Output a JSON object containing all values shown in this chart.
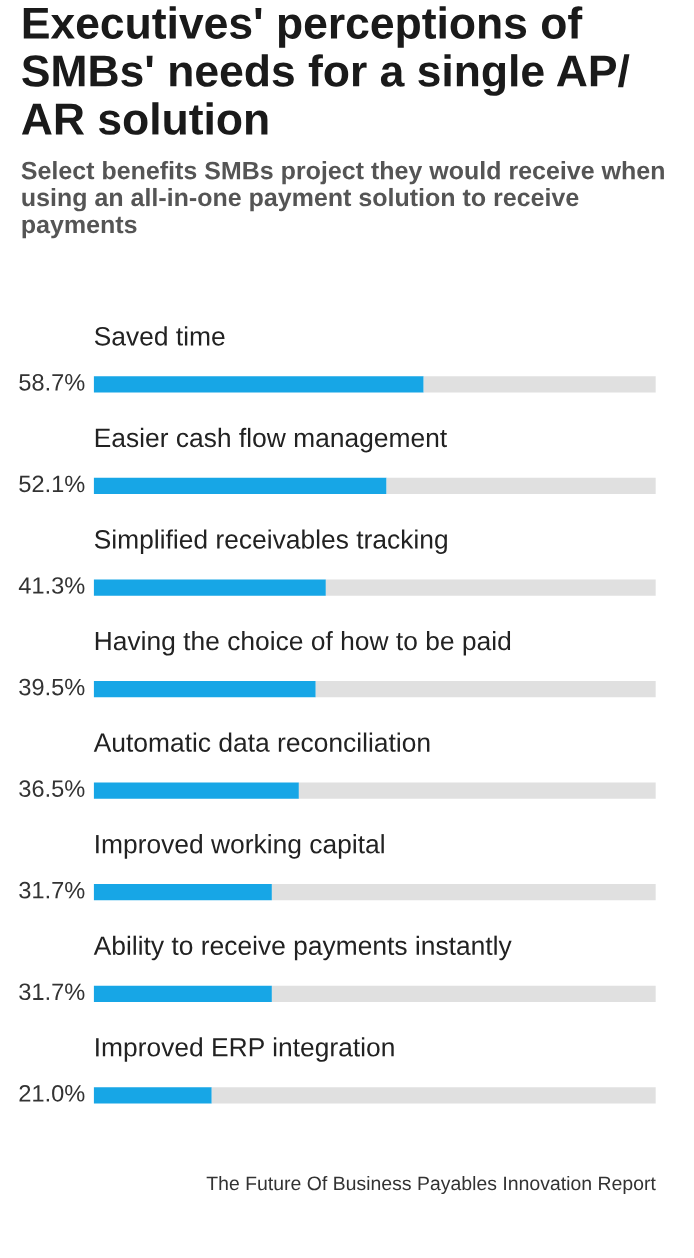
{
  "chart_data": {
    "type": "bar",
    "orientation": "horizontal",
    "title": "Executives' perceptions of SMBs' needs for a single AP/ AR solution",
    "subtitle": "Select benefits SMBs project they would receive when using an all-in-one payment solution to receive payments",
    "categories": [
      "Saved time",
      "Easier cash flow management",
      "Simplified receivables tracking",
      "Having the choice of how to be paid",
      "Automatic data reconciliation",
      "Improved working capital",
      "Ability to receive payments instantly",
      "Improved ERP integration"
    ],
    "stacked": true,
    "series": [
      {
        "color": "#17a6e6",
        "values": [
          58.7,
          52.1,
          41.3,
          39.5,
          36.5,
          31.7,
          31.7,
          21.0
        ],
        "value_labels": [
          "58.7%",
          "52.1%",
          "41.3%",
          "39.5%",
          "36.5%",
          "31.7%",
          "31.7%",
          "21.0%"
        ]
      },
      {
        "color": "#e0e0e0",
        "values": [
          41.3,
          47.9,
          58.7,
          60.5,
          63.5,
          68.3,
          68.3,
          79.0
        ]
      }
    ],
    "xlim": [
      0,
      100
    ],
    "annotations": [
      "The Future Of Business Payables Innovation Report"
    ]
  }
}
